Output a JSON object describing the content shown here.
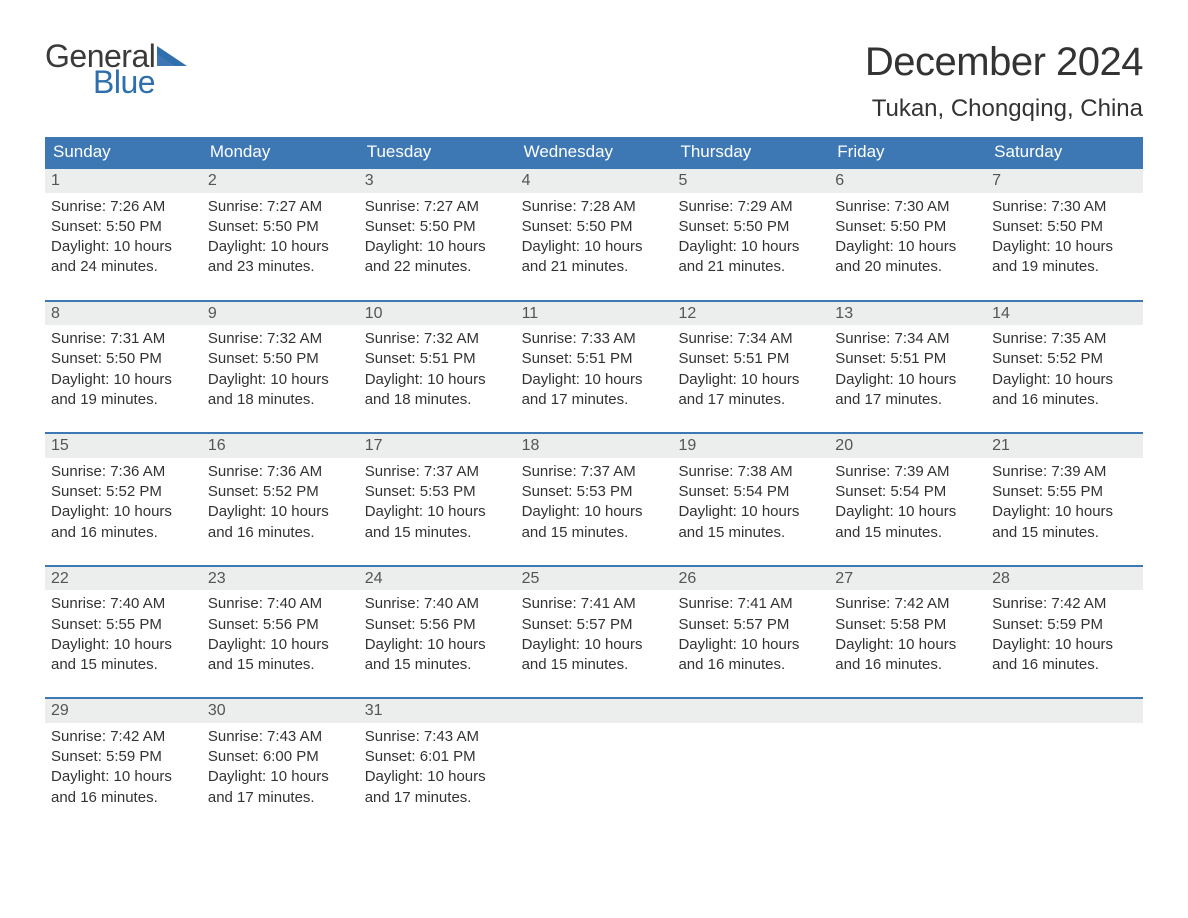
{
  "brand": {
    "word1": "General",
    "word2": "Blue",
    "flag_color": "#2f6fad",
    "text_color_1": "#3a3a3a",
    "text_color_2": "#2f6fad"
  },
  "title": "December 2024",
  "location": "Tukan, Chongqing, China",
  "colors": {
    "header_bg": "#3d78b4",
    "header_text": "#ffffff",
    "daynum_bg": "#eceded",
    "border": "#3d78b4",
    "body_text": "#333333",
    "page_bg": "#ffffff"
  },
  "fonts": {
    "title_size": 40,
    "location_size": 24,
    "dow_size": 17,
    "body_size": 15,
    "daynum_size": 16
  },
  "days_of_week": [
    "Sunday",
    "Monday",
    "Tuesday",
    "Wednesday",
    "Thursday",
    "Friday",
    "Saturday"
  ],
  "weeks": [
    [
      {
        "n": "1",
        "sunrise": "Sunrise: 7:26 AM",
        "sunset": "Sunset: 5:50 PM",
        "daylight": "Daylight: 10 hours and 24 minutes."
      },
      {
        "n": "2",
        "sunrise": "Sunrise: 7:27 AM",
        "sunset": "Sunset: 5:50 PM",
        "daylight": "Daylight: 10 hours and 23 minutes."
      },
      {
        "n": "3",
        "sunrise": "Sunrise: 7:27 AM",
        "sunset": "Sunset: 5:50 PM",
        "daylight": "Daylight: 10 hours and 22 minutes."
      },
      {
        "n": "4",
        "sunrise": "Sunrise: 7:28 AM",
        "sunset": "Sunset: 5:50 PM",
        "daylight": "Daylight: 10 hours and 21 minutes."
      },
      {
        "n": "5",
        "sunrise": "Sunrise: 7:29 AM",
        "sunset": "Sunset: 5:50 PM",
        "daylight": "Daylight: 10 hours and 21 minutes."
      },
      {
        "n": "6",
        "sunrise": "Sunrise: 7:30 AM",
        "sunset": "Sunset: 5:50 PM",
        "daylight": "Daylight: 10 hours and 20 minutes."
      },
      {
        "n": "7",
        "sunrise": "Sunrise: 7:30 AM",
        "sunset": "Sunset: 5:50 PM",
        "daylight": "Daylight: 10 hours and 19 minutes."
      }
    ],
    [
      {
        "n": "8",
        "sunrise": "Sunrise: 7:31 AM",
        "sunset": "Sunset: 5:50 PM",
        "daylight": "Daylight: 10 hours and 19 minutes."
      },
      {
        "n": "9",
        "sunrise": "Sunrise: 7:32 AM",
        "sunset": "Sunset: 5:50 PM",
        "daylight": "Daylight: 10 hours and 18 minutes."
      },
      {
        "n": "10",
        "sunrise": "Sunrise: 7:32 AM",
        "sunset": "Sunset: 5:51 PM",
        "daylight": "Daylight: 10 hours and 18 minutes."
      },
      {
        "n": "11",
        "sunrise": "Sunrise: 7:33 AM",
        "sunset": "Sunset: 5:51 PM",
        "daylight": "Daylight: 10 hours and 17 minutes."
      },
      {
        "n": "12",
        "sunrise": "Sunrise: 7:34 AM",
        "sunset": "Sunset: 5:51 PM",
        "daylight": "Daylight: 10 hours and 17 minutes."
      },
      {
        "n": "13",
        "sunrise": "Sunrise: 7:34 AM",
        "sunset": "Sunset: 5:51 PM",
        "daylight": "Daylight: 10 hours and 17 minutes."
      },
      {
        "n": "14",
        "sunrise": "Sunrise: 7:35 AM",
        "sunset": "Sunset: 5:52 PM",
        "daylight": "Daylight: 10 hours and 16 minutes."
      }
    ],
    [
      {
        "n": "15",
        "sunrise": "Sunrise: 7:36 AM",
        "sunset": "Sunset: 5:52 PM",
        "daylight": "Daylight: 10 hours and 16 minutes."
      },
      {
        "n": "16",
        "sunrise": "Sunrise: 7:36 AM",
        "sunset": "Sunset: 5:52 PM",
        "daylight": "Daylight: 10 hours and 16 minutes."
      },
      {
        "n": "17",
        "sunrise": "Sunrise: 7:37 AM",
        "sunset": "Sunset: 5:53 PM",
        "daylight": "Daylight: 10 hours and 15 minutes."
      },
      {
        "n": "18",
        "sunrise": "Sunrise: 7:37 AM",
        "sunset": "Sunset: 5:53 PM",
        "daylight": "Daylight: 10 hours and 15 minutes."
      },
      {
        "n": "19",
        "sunrise": "Sunrise: 7:38 AM",
        "sunset": "Sunset: 5:54 PM",
        "daylight": "Daylight: 10 hours and 15 minutes."
      },
      {
        "n": "20",
        "sunrise": "Sunrise: 7:39 AM",
        "sunset": "Sunset: 5:54 PM",
        "daylight": "Daylight: 10 hours and 15 minutes."
      },
      {
        "n": "21",
        "sunrise": "Sunrise: 7:39 AM",
        "sunset": "Sunset: 5:55 PM",
        "daylight": "Daylight: 10 hours and 15 minutes."
      }
    ],
    [
      {
        "n": "22",
        "sunrise": "Sunrise: 7:40 AM",
        "sunset": "Sunset: 5:55 PM",
        "daylight": "Daylight: 10 hours and 15 minutes."
      },
      {
        "n": "23",
        "sunrise": "Sunrise: 7:40 AM",
        "sunset": "Sunset: 5:56 PM",
        "daylight": "Daylight: 10 hours and 15 minutes."
      },
      {
        "n": "24",
        "sunrise": "Sunrise: 7:40 AM",
        "sunset": "Sunset: 5:56 PM",
        "daylight": "Daylight: 10 hours and 15 minutes."
      },
      {
        "n": "25",
        "sunrise": "Sunrise: 7:41 AM",
        "sunset": "Sunset: 5:57 PM",
        "daylight": "Daylight: 10 hours and 15 minutes."
      },
      {
        "n": "26",
        "sunrise": "Sunrise: 7:41 AM",
        "sunset": "Sunset: 5:57 PM",
        "daylight": "Daylight: 10 hours and 16 minutes."
      },
      {
        "n": "27",
        "sunrise": "Sunrise: 7:42 AM",
        "sunset": "Sunset: 5:58 PM",
        "daylight": "Daylight: 10 hours and 16 minutes."
      },
      {
        "n": "28",
        "sunrise": "Sunrise: 7:42 AM",
        "sunset": "Sunset: 5:59 PM",
        "daylight": "Daylight: 10 hours and 16 minutes."
      }
    ],
    [
      {
        "n": "29",
        "sunrise": "Sunrise: 7:42 AM",
        "sunset": "Sunset: 5:59 PM",
        "daylight": "Daylight: 10 hours and 16 minutes."
      },
      {
        "n": "30",
        "sunrise": "Sunrise: 7:43 AM",
        "sunset": "Sunset: 6:00 PM",
        "daylight": "Daylight: 10 hours and 17 minutes."
      },
      {
        "n": "31",
        "sunrise": "Sunrise: 7:43 AM",
        "sunset": "Sunset: 6:01 PM",
        "daylight": "Daylight: 10 hours and 17 minutes."
      },
      {
        "empty": true
      },
      {
        "empty": true
      },
      {
        "empty": true
      },
      {
        "empty": true
      }
    ]
  ]
}
